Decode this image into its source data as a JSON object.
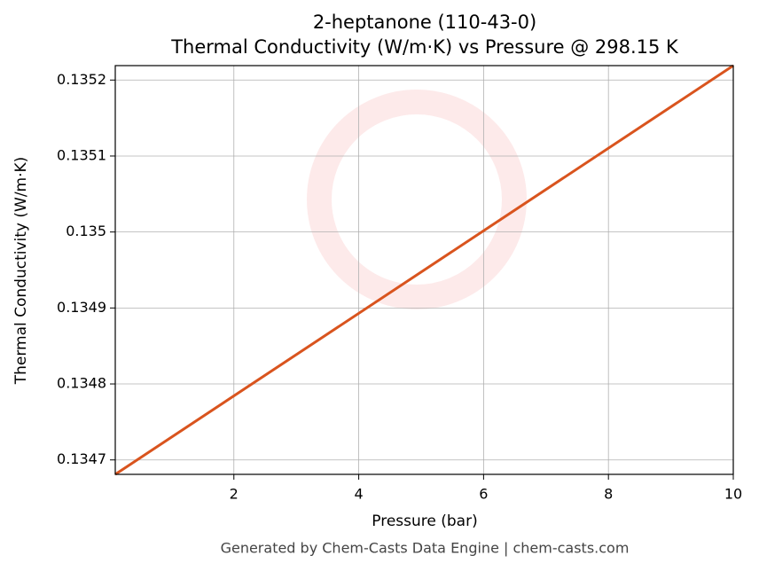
{
  "chart_data": {
    "type": "line",
    "title": "2-heptanone (110-43-0)",
    "subtitle": "Thermal Conductivity (W/m·K) vs Pressure @ 298.15 K",
    "x_label": "Pressure (bar)",
    "y_label": "Thermal Conductivity (W/m·K)",
    "footer": "Generated by Chem-Casts Data Engine | chem-casts.com",
    "x": [
      0.1,
      10
    ],
    "series": [
      {
        "name": "Thermal Conductivity",
        "color": "#d9541e",
        "values": [
          0.134681,
          0.135219
        ]
      }
    ],
    "xlim": [
      0.1,
      10
    ],
    "xticks": [
      2,
      4,
      6,
      8,
      10
    ],
    "ylim": [
      0.134681,
      0.135219
    ],
    "yticks": [
      0.1347,
      0.1348,
      0.1349,
      0.135,
      0.1351,
      0.1352
    ],
    "grid": true
  }
}
